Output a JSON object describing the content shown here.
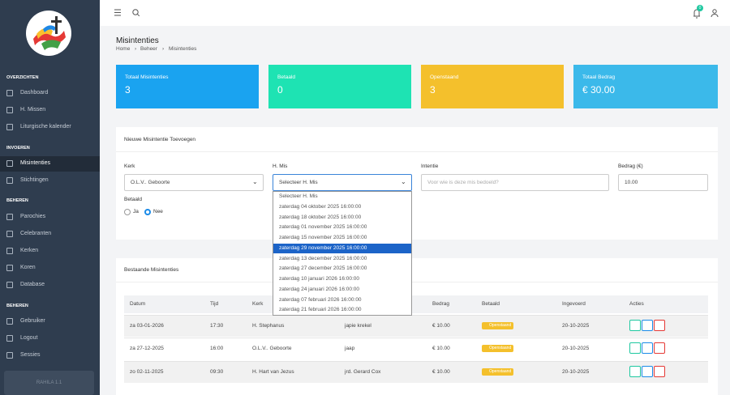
{
  "sidebar": {
    "sections": [
      {
        "title": "OVERZICHTEN",
        "items": [
          "Dashboard",
          "H. Missen",
          "Liturgische kalender"
        ]
      },
      {
        "title": "INVOEREN",
        "items": [
          "Misintenties",
          "Stichtingen"
        ]
      },
      {
        "title": "BEHEREN",
        "items": [
          "Parochies",
          "Celebranten",
          "Kerken",
          "Koren",
          "Database"
        ]
      },
      {
        "title": "BEHEREN",
        "items": [
          "Gebruiker",
          "Logout",
          "Sessies"
        ]
      }
    ],
    "version": "RAHILA 1.1"
  },
  "header": {
    "notifications": 0
  },
  "page": {
    "title": "Misintenties",
    "breadcrumb": [
      "Home",
      "Beheer",
      "Misintenties"
    ]
  },
  "stats": [
    {
      "label": "Totaal Misintenties",
      "value": 3
    },
    {
      "label": "Betaald",
      "value": 0
    },
    {
      "label": "Openstaand",
      "value": 3
    },
    {
      "label": "Totaal Bedrag",
      "value": "€ 30.00"
    }
  ],
  "form": {
    "title": "Nieuwe Misintentie Toevoegen",
    "kerk": {
      "label": "Kerk",
      "value": "O.L.V.. Geboorte"
    },
    "mis": {
      "label": "H. Mis",
      "value": "Selecteer H. Mis"
    },
    "intentie": {
      "label": "Intentie",
      "placeholder": "Voor wie is deze mis bedoeld?"
    },
    "bedrag": {
      "label": "Bedrag (€)",
      "value": "10.00"
    },
    "betaald": {
      "label": "Betaald",
      "options": [
        "Ja",
        "Nee"
      ]
    },
    "dropdown": [
      "Selecteer H. Mis",
      "zaterdag 04 oktober 2025 16:00:00",
      "zaterdag 18 oktober 2025 16:00:00",
      "zaterdag 01 november 2025 16:00:00",
      "zaterdag 15 november 2025 16:00:00",
      "zaterdag 29 november 2025 16:00:00",
      "zaterdag 13 december 2025 16:00:00",
      "zaterdag 27 december 2025 16:00:00",
      "zaterdag 10 januari 2026 16:00:00",
      "zaterdag 24 januari 2026 16:00:00",
      "zaterdag 07 februari 2026 16:00:00",
      "zaterdag 21 februari 2026 16:00:00"
    ]
  },
  "table": {
    "title": "Bestaande Misintenties",
    "columns": [
      "Datum",
      "Tijd",
      "Kerk",
      "Bedrag",
      "Betaald",
      "Ingevoerd",
      "Acties"
    ],
    "rows": [
      [
        "za 03-01-2026",
        "17:30",
        "H. Stephanus",
        "japie krekel",
        "€ 10.00",
        "Openstaand",
        "20-10-2025"
      ],
      [
        "za 27-12-2025",
        "16:00",
        "O.L.V.. Geboorte",
        "jaap",
        "€ 10.00",
        "Openstaand",
        "20-10-2025"
      ],
      [
        "zo 02-11-2025",
        "09:30",
        "H. Hart van Jezus",
        "jrd. Gerard Cox",
        "€ 10.00",
        "Openstaand",
        "20-10-2025"
      ]
    ]
  }
}
